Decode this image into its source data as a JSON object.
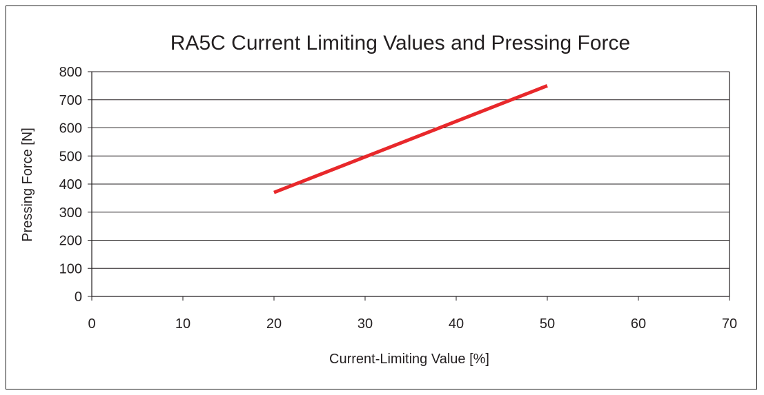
{
  "chart_data": {
    "type": "line",
    "title": "RA5C Current Limiting Values and Pressing Force",
    "xlabel": "Current-Limiting Value [%]",
    "ylabel": "Pressing Force [N]",
    "xlim": [
      0,
      70
    ],
    "ylim": [
      0,
      800
    ],
    "x_ticks": [
      "0",
      "10",
      "20",
      "30",
      "40",
      "50",
      "60",
      "70"
    ],
    "y_ticks": [
      "0",
      "100",
      "200",
      "300",
      "400",
      "500",
      "600",
      "700",
      "800"
    ],
    "grid": "horizontal",
    "series": [
      {
        "color": "#e8282b",
        "x": [
          20,
          50
        ],
        "y": [
          370,
          750
        ]
      }
    ]
  }
}
